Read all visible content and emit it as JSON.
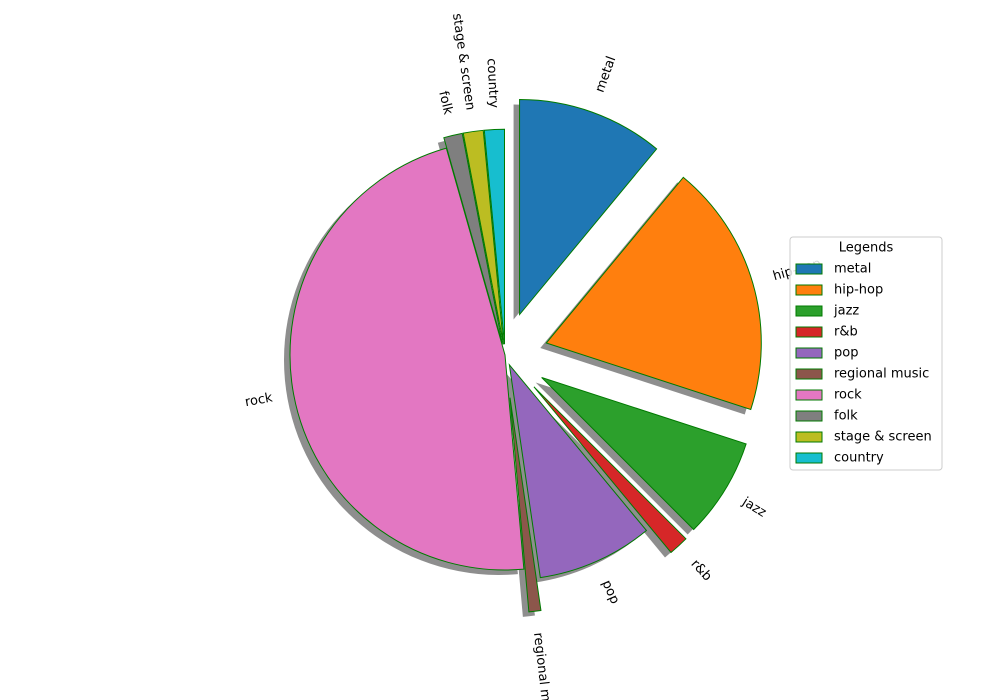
{
  "chart_data": {
    "type": "pie",
    "categories": [
      "metal",
      "hip-hop",
      "jazz",
      "r&b",
      "pop",
      "regional music",
      "rock",
      "folk",
      "stage & screen",
      "country"
    ],
    "values": [
      11,
      19,
      7.5,
      1.5,
      8.7,
      0.9,
      47,
      1.4,
      1.5,
      1.5
    ],
    "colors": [
      "#1f77b4",
      "#ff7f0e",
      "#2ca02c",
      "#d62728",
      "#9467bd",
      "#8c564b",
      "#e377c2",
      "#7f7f7f",
      "#bcbd22",
      "#17becf"
    ],
    "explode": [
      0.2,
      0.2,
      0.2,
      0.2,
      0.05,
      0.2,
      0,
      0.05,
      0.05,
      0.05
    ],
    "start_angle": 90,
    "counterclock": false,
    "shadow": true,
    "edge_color": "#007a00",
    "legend_title": "Legends",
    "legend": "right"
  }
}
